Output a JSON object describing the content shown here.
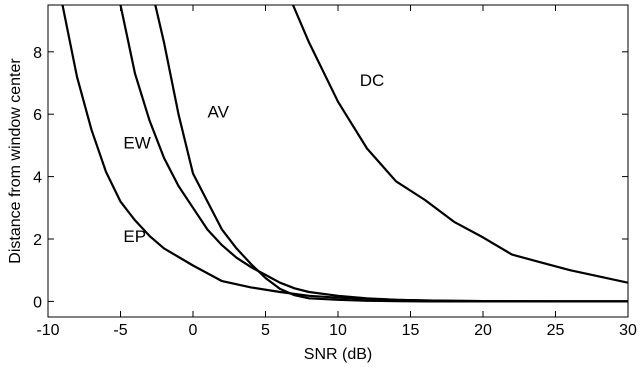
{
  "chart_data": {
    "type": "line",
    "title": "",
    "xlabel": "SNR (dB)",
    "ylabel": "Distance from window center",
    "xlim": [
      -10,
      30
    ],
    "ylim": [
      -0.5,
      9.5
    ],
    "xticks": [
      -10,
      -5,
      0,
      5,
      10,
      15,
      20,
      25,
      30
    ],
    "yticks": [
      0,
      2,
      4,
      6,
      8
    ],
    "grid": false,
    "legend": "none",
    "line_color": "#000000",
    "series": [
      {
        "name": "DC",
        "label_at": [
          11.5,
          6.9
        ],
        "x": [
          6.9,
          8,
          10,
          12,
          14,
          16,
          18,
          20,
          22,
          24,
          26,
          28,
          30
        ],
        "y": [
          9.5,
          8.3,
          6.4,
          4.9,
          3.85,
          3.25,
          2.55,
          2.05,
          1.5,
          1.25,
          1.0,
          0.8,
          0.6
        ]
      },
      {
        "name": "AV",
        "label_at": [
          1.0,
          5.9
        ],
        "x": [
          -2.6,
          -2,
          -1,
          0,
          1,
          2,
          3,
          4,
          5,
          6,
          7,
          8,
          10,
          12,
          14,
          16,
          18,
          20,
          25,
          30
        ],
        "y": [
          9.5,
          8.3,
          6.0,
          4.1,
          3.2,
          2.3,
          1.7,
          1.2,
          0.75,
          0.4,
          0.2,
          0.1,
          0.05,
          0.02,
          0.01,
          0.0,
          0.0,
          0.0,
          0.0,
          0.0
        ]
      },
      {
        "name": "EW",
        "label_at": [
          -4.8,
          4.9
        ],
        "x": [
          -5,
          -4,
          -3,
          -2,
          -1,
          0,
          1,
          2,
          3,
          4,
          5,
          6,
          7,
          8,
          10,
          12,
          14,
          16,
          18,
          20,
          25,
          30
        ],
        "y": [
          9.5,
          7.3,
          5.8,
          4.6,
          3.7,
          3.0,
          2.3,
          1.8,
          1.4,
          1.1,
          0.85,
          0.6,
          0.42,
          0.3,
          0.18,
          0.1,
          0.05,
          0.03,
          0.02,
          0.01,
          0.0,
          0.0
        ]
      },
      {
        "name": "EP",
        "label_at": [
          -4.8,
          1.9
        ],
        "x": [
          -9,
          -8,
          -7,
          -6,
          -5,
          -4,
          -3,
          -2,
          0,
          2,
          4,
          6,
          8,
          10,
          12,
          14,
          16,
          18,
          20,
          25,
          30
        ],
        "y": [
          9.5,
          7.2,
          5.5,
          4.15,
          3.2,
          2.6,
          2.1,
          1.7,
          1.15,
          0.65,
          0.45,
          0.3,
          0.18,
          0.12,
          0.08,
          0.05,
          0.03,
          0.02,
          0.01,
          0.0,
          0.0
        ]
      }
    ]
  }
}
